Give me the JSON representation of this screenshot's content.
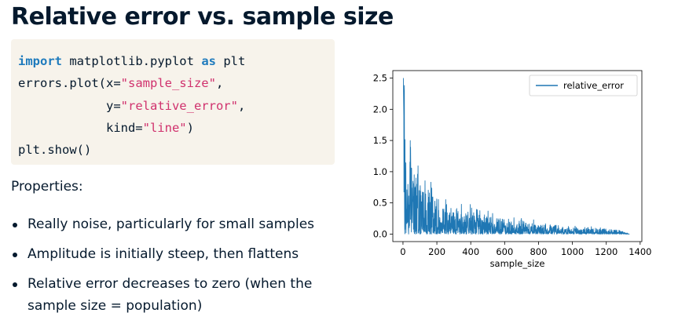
{
  "slide": {
    "title": "Relative error vs. sample size",
    "code": {
      "line1": {
        "kw": "import",
        "rest": " matplotlib.pyplot ",
        "kw2": "as",
        "rest2": " plt"
      },
      "line2": {
        "pre": "errors.plot(x=",
        "str": "\"sample_size\"",
        "post": ","
      },
      "line3": {
        "pre": "            y=",
        "str": "\"relative_error\"",
        "post": ","
      },
      "line4": {
        "pre": "            kind=",
        "str": "\"line\"",
        "post": ")"
      },
      "line5": "plt.show()"
    },
    "properties_label": "Properties:",
    "bullets": [
      "Really noise, particularly for small samples",
      "Amplitude is initially steep, then flattens",
      "Relative error decreases to zero (when the sample size = population)"
    ]
  },
  "chart_data": {
    "type": "line",
    "xlabel": "sample_size",
    "ylabel": "",
    "xlim": [
      -60,
      1410
    ],
    "ylim": [
      -0.12,
      2.62
    ],
    "xticks": [
      0,
      200,
      400,
      600,
      800,
      1000,
      1200,
      1400
    ],
    "yticks": [
      "0.0",
      "0.5",
      "1.0",
      "1.5",
      "2.0",
      "2.5"
    ],
    "legend": "top-right",
    "series": [
      {
        "name": "relative_error",
        "color": "#1f77b4",
        "x": [
          2,
          5,
          10,
          15,
          25,
          40,
          60,
          80,
          100,
          150,
          200,
          300,
          400,
          500,
          600,
          700,
          800,
          900,
          1000,
          1100,
          1200,
          1300,
          1337
        ],
        "y": [
          2.5,
          1.9,
          1.0,
          0.8,
          0.6,
          1.0,
          0.8,
          0.6,
          0.5,
          0.45,
          0.35,
          0.25,
          0.22,
          0.18,
          0.15,
          0.12,
          0.1,
          0.08,
          0.07,
          0.06,
          0.05,
          0.03,
          0.0
        ]
      }
    ]
  }
}
